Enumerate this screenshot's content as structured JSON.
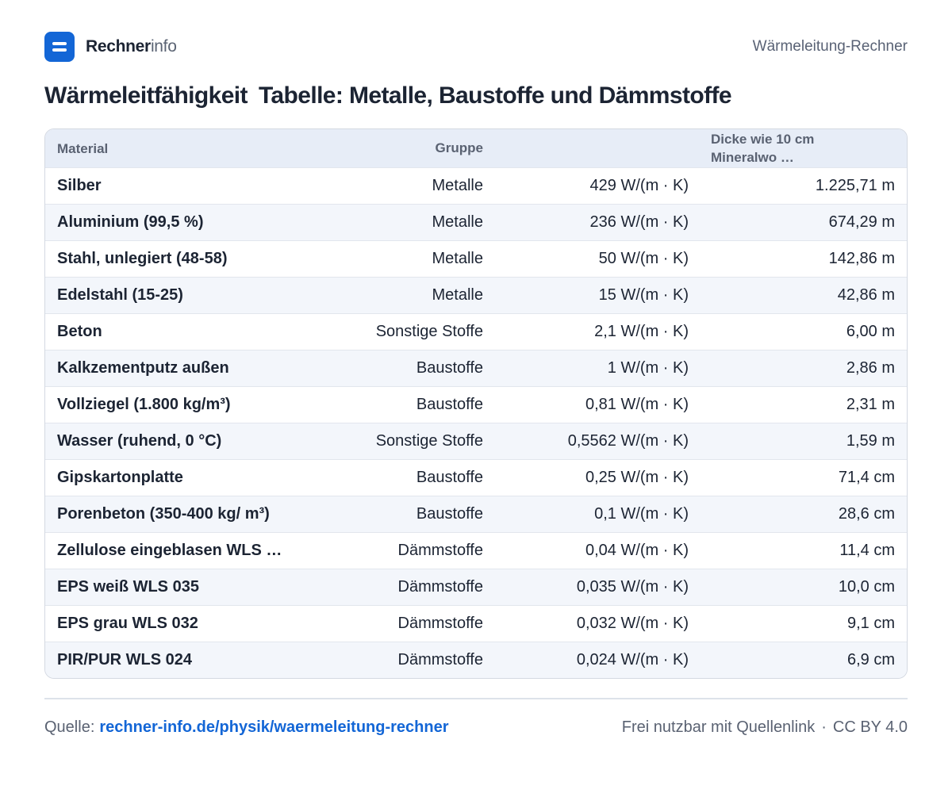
{
  "header": {
    "brand_strong": "Rechner",
    "brand_light": "info",
    "right_label": "Wärmeleitung-Rechner"
  },
  "title": {
    "part1": "Wärmeleitfähigkeit",
    "part2": "Tabelle: Metalle, Baustoffe und Dämmstoffe"
  },
  "table": {
    "headers": {
      "material": "Material",
      "group": "Gruppe",
      "value": "",
      "thickness": "Dicke wie 10 cm Mineralwo …"
    },
    "rows": [
      {
        "material": "Silber",
        "group": "Metalle",
        "value": "429 W/(m · K)",
        "thickness": "1.225,71 m"
      },
      {
        "material": "Aluminium (99,5 %)",
        "group": "Metalle",
        "value": "236 W/(m · K)",
        "thickness": "674,29 m"
      },
      {
        "material": "Stahl, unlegiert (48-58)",
        "group": "Metalle",
        "value": "50 W/(m · K)",
        "thickness": "142,86 m"
      },
      {
        "material": "Edelstahl (15-25)",
        "group": "Metalle",
        "value": "15 W/(m · K)",
        "thickness": "42,86 m"
      },
      {
        "material": "Beton",
        "group": "Sonstige Stoffe",
        "value": "2,1 W/(m · K)",
        "thickness": "6,00 m"
      },
      {
        "material": "Kalkzementputz außen",
        "group": "Baustoffe",
        "value": "1 W/(m · K)",
        "thickness": "2,86 m"
      },
      {
        "material": "Vollziegel (1.800 kg/m³)",
        "group": "Baustoffe",
        "value": "0,81 W/(m · K)",
        "thickness": "2,31 m"
      },
      {
        "material": "Wasser (ruhend, 0 °C)",
        "group": "Sonstige Stoffe",
        "value": "0,5562 W/(m · K)",
        "thickness": "1,59 m"
      },
      {
        "material": "Gipskartonplatte",
        "group": "Baustoffe",
        "value": "0,25 W/(m · K)",
        "thickness": "71,4 cm"
      },
      {
        "material": "Porenbeton (350-400 kg/ m³)",
        "group": "Baustoffe",
        "value": "0,1 W/(m · K)",
        "thickness": "28,6 cm"
      },
      {
        "material": "Zellulose eingeblasen WLS …",
        "group": "Dämmstoffe",
        "value": "0,04 W/(m · K)",
        "thickness": "11,4 cm"
      },
      {
        "material": "EPS weiß WLS 035",
        "group": "Dämmstoffe",
        "value": "0,035 W/(m · K)",
        "thickness": "10,0 cm"
      },
      {
        "material": "EPS grau WLS 032",
        "group": "Dämmstoffe",
        "value": "0,032 W/(m · K)",
        "thickness": "9,1 cm"
      },
      {
        "material": "PIR/PUR WLS 024",
        "group": "Dämmstoffe",
        "value": "0,024 W/(m · K)",
        "thickness": "6,9 cm"
      }
    ]
  },
  "footer": {
    "source_label": "Quelle:",
    "source_link": "rechner-info.de/physik/waermeleitung-rechner",
    "license_text": "Frei nutzbar mit Quellenlink",
    "separator": "·",
    "license": "CC BY 4.0"
  },
  "colors": {
    "accent": "#1366d6",
    "text": "#1c2433",
    "muted": "#5a6272",
    "header_bg": "#e7edf7",
    "row_alt_bg": "#f3f6fb"
  }
}
